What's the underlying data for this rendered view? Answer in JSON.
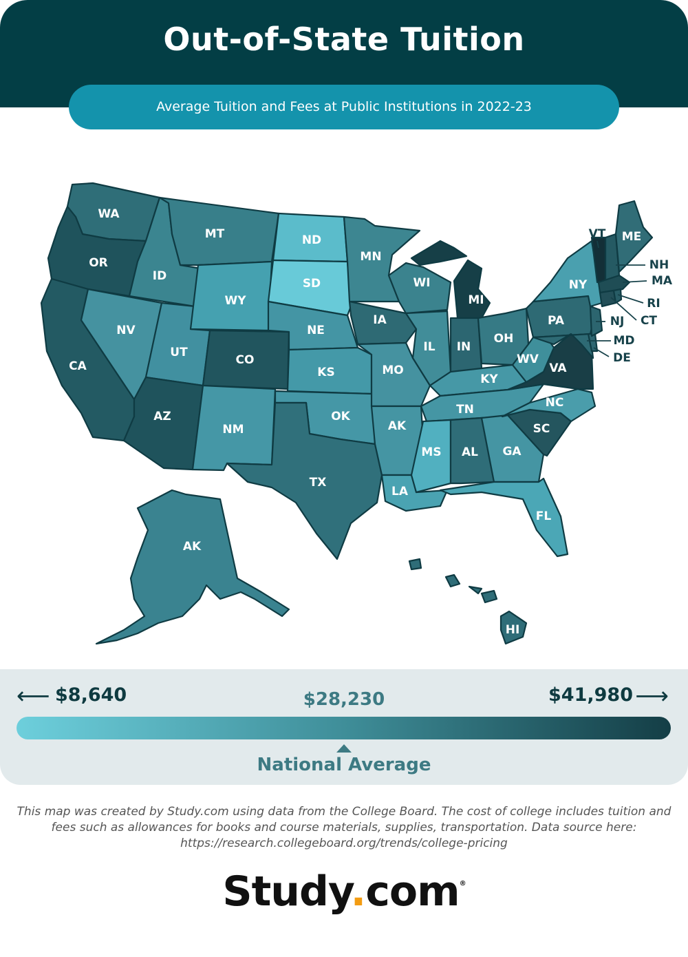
{
  "header": {
    "title": "Out-of-State Tuition",
    "subtitle": "Average Tuition and Fees at Public Institutions in 2022-23"
  },
  "colors": {
    "header_bg": "#033e45",
    "pill_bg": "#1493ac",
    "scale_low": "#6dcfdc",
    "scale_mid": "#3f8e99",
    "scale_high": "#143e46"
  },
  "states": [
    {
      "code": "WA",
      "shade": "#2f6e78"
    },
    {
      "code": "OR",
      "shade": "#1f535c"
    },
    {
      "code": "CA",
      "shade": "#235a63"
    },
    {
      "code": "ID",
      "shade": "#3b8590"
    },
    {
      "code": "MT",
      "shade": "#387f8a"
    },
    {
      "code": "NV",
      "shade": "#4592a0"
    },
    {
      "code": "UT",
      "shade": "#4190a0"
    },
    {
      "code": "WY",
      "shade": "#45a1b0"
    },
    {
      "code": "AZ",
      "shade": "#1f535c"
    },
    {
      "code": "CO",
      "shade": "#21555e"
    },
    {
      "code": "NM",
      "shade": "#4597a6"
    },
    {
      "code": "ND",
      "shade": "#5bbccb"
    },
    {
      "code": "SD",
      "shade": "#68cad8"
    },
    {
      "code": "NE",
      "shade": "#4495a4"
    },
    {
      "code": "KS",
      "shade": "#4499a8"
    },
    {
      "code": "OK",
      "shade": "#4597a6"
    },
    {
      "code": "TX",
      "shade": "#30707b"
    },
    {
      "code": "MN",
      "shade": "#3d8691"
    },
    {
      "code": "IA",
      "shade": "#2e6a74"
    },
    {
      "code": "MO",
      "shade": "#4592a0"
    },
    {
      "code": "AK",
      "shade": "#4595a3"
    },
    {
      "code": "LA",
      "shade": "#4aa3b2"
    },
    {
      "code": "WI",
      "shade": "#3b838e"
    },
    {
      "code": "IL",
      "shade": "#418d99"
    },
    {
      "code": "MI",
      "shade": "#163f47"
    },
    {
      "code": "IN",
      "shade": "#2c6671"
    },
    {
      "code": "OH",
      "shade": "#367a85"
    },
    {
      "code": "KY",
      "shade": "#4698a6"
    },
    {
      "code": "TN",
      "shade": "#4596a4"
    },
    {
      "code": "MS",
      "shade": "#51b0c0"
    },
    {
      "code": "AL",
      "shade": "#2f6d78"
    },
    {
      "code": "GA",
      "shade": "#4595a3"
    },
    {
      "code": "FL",
      "shade": "#4ba7b6"
    },
    {
      "code": "SC",
      "shade": "#24555e"
    },
    {
      "code": "NC",
      "shade": "#4a9dab"
    },
    {
      "code": "VA",
      "shade": "#193e46"
    },
    {
      "code": "WV",
      "shade": "#3f8f9b"
    },
    {
      "code": "PA",
      "shade": "#2e6a74"
    },
    {
      "code": "NY",
      "shade": "#4aa0af"
    },
    {
      "code": "VT",
      "shade": "#132f37"
    },
    {
      "code": "ME",
      "shade": "#316d77"
    },
    {
      "code": "NH",
      "shade": "#255a63"
    },
    {
      "code": "MA",
      "shade": "#1f4d55"
    },
    {
      "code": "RI",
      "shade": "#285d66"
    },
    {
      "code": "CT",
      "shade": "#234f58"
    },
    {
      "code": "NJ",
      "shade": "#2c656f"
    },
    {
      "code": "DE",
      "shade": "#2e6671"
    },
    {
      "code": "MD",
      "shade": "#2e6a74"
    },
    {
      "code": "AK",
      "shade": "#3a8390"
    },
    {
      "code": "HI",
      "shade": "#2f6d78"
    }
  ],
  "legend": {
    "min": "$8,640",
    "max": "$41,980",
    "average_value": "$28,230",
    "average_label": "National Average"
  },
  "footnote": "This map was created by Study.com using data from the College Board. The cost of college includes tuition and fees such as allowances for books and course materials, supplies, transportation. Data source here: https://research.collegeboard.org/trends/college-pricing",
  "logo": {
    "part1": "Study",
    "dot": ".",
    "part2": "com",
    "mark": "®"
  }
}
